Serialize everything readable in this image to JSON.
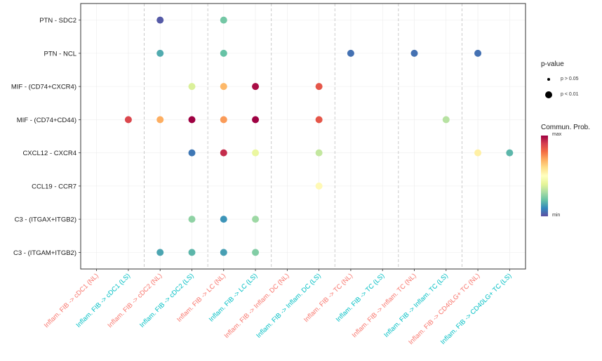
{
  "chart_data": {
    "type": "scatter",
    "title": "",
    "xlabel": "",
    "ylabel": "",
    "x_categories": [
      "Inflam. FIB -> cDC1 (NL)",
      "Inflam. FIB -> cDC1 (LS)",
      "Inflam. FIB -> cDC2 (NL)",
      "Inflam. FIB -> cDC2 (LS)",
      "Inflam. FIB -> LC (NL)",
      "Inflam. FIB -> LC (LS)",
      "Inflam. FIB -> Inflam. DC (NL)",
      "Inflam. FIB -> Inflam. DC (LS)",
      "Inflam. FIB -> TC (NL)",
      "Inflam. FIB -> TC (LS)",
      "Inflam. FIB -> Inflam. TC (NL)",
      "Inflam. FIB -> Inflam. TC (LS)",
      "Inflam. FIB -> CD40LG+ TC (NL)",
      "Inflam. FIB -> CD40LG+ TC (LS)"
    ],
    "x_label_colors": [
      "#F8766D",
      "#00BFC4",
      "#F8766D",
      "#00BFC4",
      "#F8766D",
      "#00BFC4",
      "#F8766D",
      "#00BFC4",
      "#F8766D",
      "#00BFC4",
      "#F8766D",
      "#00BFC4",
      "#F8766D",
      "#00BFC4"
    ],
    "y_categories": [
      "PTN - SDC2",
      "PTN - NCL",
      "MIF - (CD74+CXCR4)",
      "MIF - (CD74+CD44)",
      "CXCL12 - CXCR4",
      "CCL19 - CCR7",
      "C3 - (ITGAX+ITGB2)",
      "C3 - (ITGAM+ITGB2)"
    ],
    "points": [
      {
        "x": 2,
        "y": 0,
        "prob": 0.02,
        "p": "p < 0.01"
      },
      {
        "x": 4,
        "y": 0,
        "prob": 0.22,
        "p": "p < 0.01"
      },
      {
        "x": 2,
        "y": 1,
        "prob": 0.16,
        "p": "p < 0.01"
      },
      {
        "x": 4,
        "y": 1,
        "prob": 0.2,
        "p": "p < 0.01"
      },
      {
        "x": 8,
        "y": 1,
        "prob": 0.06,
        "p": "p < 0.01"
      },
      {
        "x": 10,
        "y": 1,
        "prob": 0.06,
        "p": "p < 0.01"
      },
      {
        "x": 12,
        "y": 1,
        "prob": 0.06,
        "p": "p < 0.01"
      },
      {
        "x": 3,
        "y": 2,
        "prob": 0.38,
        "p": "p < 0.01"
      },
      {
        "x": 4,
        "y": 2,
        "prob": 0.68,
        "p": "p < 0.01"
      },
      {
        "x": 5,
        "y": 2,
        "prob": 0.98,
        "p": "p < 0.01"
      },
      {
        "x": 7,
        "y": 2,
        "prob": 0.85,
        "p": "p < 0.01"
      },
      {
        "x": 1,
        "y": 3,
        "prob": 0.88,
        "p": "p < 0.01"
      },
      {
        "x": 2,
        "y": 3,
        "prob": 0.7,
        "p": "p < 0.01"
      },
      {
        "x": 3,
        "y": 3,
        "prob": 1.0,
        "p": "p < 0.01"
      },
      {
        "x": 4,
        "y": 3,
        "prob": 0.73,
        "p": "p < 0.01"
      },
      {
        "x": 5,
        "y": 3,
        "prob": 1.0,
        "p": "p < 0.01"
      },
      {
        "x": 7,
        "y": 3,
        "prob": 0.85,
        "p": "p < 0.01"
      },
      {
        "x": 11,
        "y": 3,
        "prob": 0.32,
        "p": "p < 0.01"
      },
      {
        "x": 3,
        "y": 4,
        "prob": 0.07,
        "p": "p < 0.01"
      },
      {
        "x": 4,
        "y": 4,
        "prob": 0.93,
        "p": "p < 0.01"
      },
      {
        "x": 5,
        "y": 4,
        "prob": 0.42,
        "p": "p < 0.01"
      },
      {
        "x": 7,
        "y": 4,
        "prob": 0.34,
        "p": "p < 0.01"
      },
      {
        "x": 12,
        "y": 4,
        "prob": 0.55,
        "p": "p < 0.01"
      },
      {
        "x": 13,
        "y": 4,
        "prob": 0.18,
        "p": "p < 0.01"
      },
      {
        "x": 7,
        "y": 5,
        "prob": 0.52,
        "p": "p < 0.01"
      },
      {
        "x": 3,
        "y": 6,
        "prob": 0.26,
        "p": "p < 0.01"
      },
      {
        "x": 4,
        "y": 6,
        "prob": 0.12,
        "p": "p < 0.01"
      },
      {
        "x": 5,
        "y": 6,
        "prob": 0.28,
        "p": "p < 0.01"
      },
      {
        "x": 2,
        "y": 7,
        "prob": 0.15,
        "p": "p < 0.01"
      },
      {
        "x": 3,
        "y": 7,
        "prob": 0.18,
        "p": "p < 0.01"
      },
      {
        "x": 4,
        "y": 7,
        "prob": 0.14,
        "p": "p < 0.01"
      },
      {
        "x": 5,
        "y": 7,
        "prob": 0.24,
        "p": "p < 0.01"
      }
    ],
    "colormap": [
      "#5e4fa2",
      "#3288bd",
      "#66c2a5",
      "#abdda4",
      "#e6f598",
      "#ffffbf",
      "#fee08b",
      "#fdae61",
      "#f46d43",
      "#d53e4f",
      "#9e0142"
    ],
    "group_separators_after": [
      1,
      3,
      5,
      7,
      9,
      11
    ],
    "grid": true,
    "legend_placement": "right",
    "size_legend": {
      "title": "p-value",
      "entries": [
        "p > 0.05",
        "p < 0.01"
      ]
    },
    "color_legend": {
      "title": "Commun. Prob.",
      "max_label": "max",
      "min_label": "min"
    }
  }
}
